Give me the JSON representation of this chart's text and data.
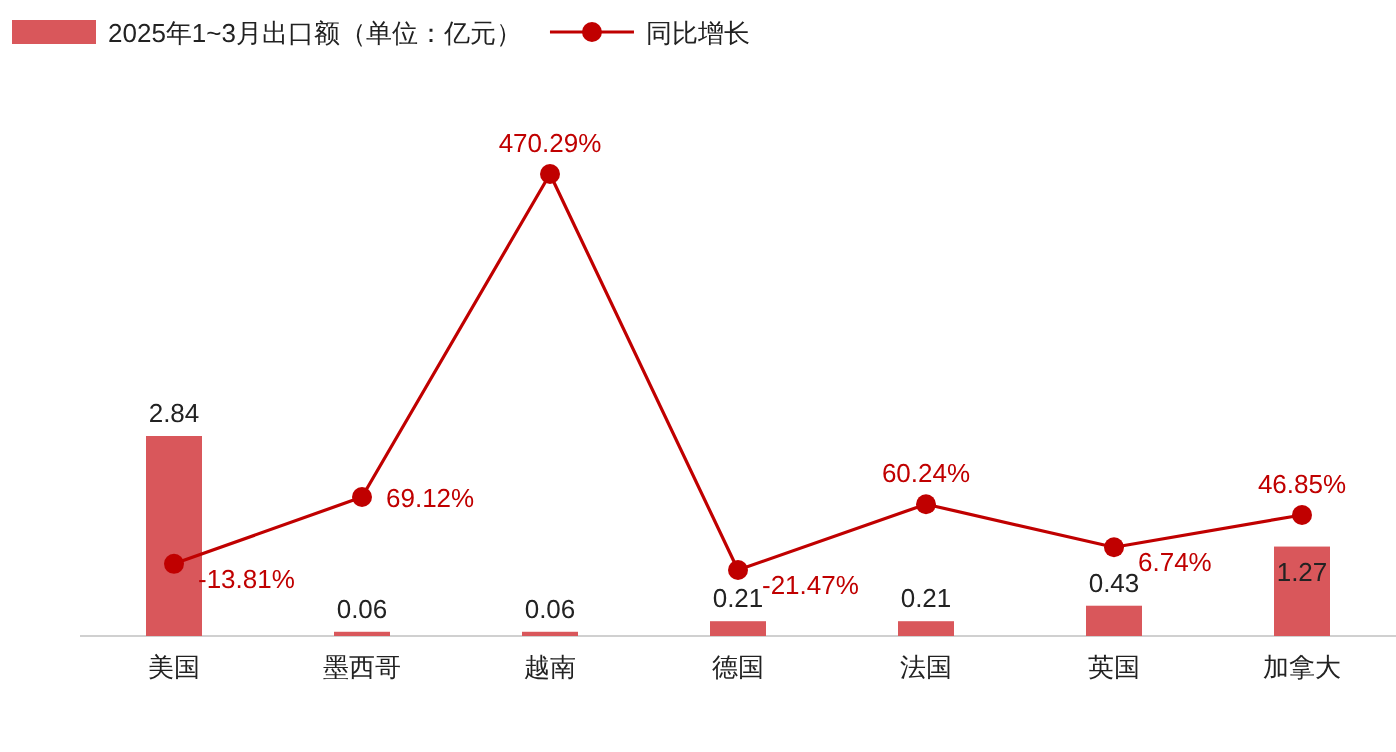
{
  "chart_data": {
    "type": "bar",
    "categories": [
      "美国",
      "墨西哥",
      "越南",
      "德国",
      "法国",
      "英国",
      "加拿大"
    ],
    "series": [
      {
        "name": "2025年1~3月出口额（单位：亿元）",
        "color": "#d9575b",
        "values": [
          2.84,
          0.06,
          0.06,
          0.21,
          0.21,
          0.43,
          1.27
        ]
      },
      {
        "name": "同比增长",
        "type": "line",
        "axis": "y2",
        "color": "#c00000",
        "marker": "circle",
        "values": [
          -13.81,
          69.12,
          470.29,
          -21.47,
          60.24,
          6.74,
          46.85
        ],
        "value_labels": [
          "-13.81%",
          "69.12%",
          "470.29%",
          "-21.47%",
          "60.24%",
          "6.74%",
          "46.85%"
        ]
      }
    ],
    "data_labels": true,
    "legend": "top left"
  }
}
